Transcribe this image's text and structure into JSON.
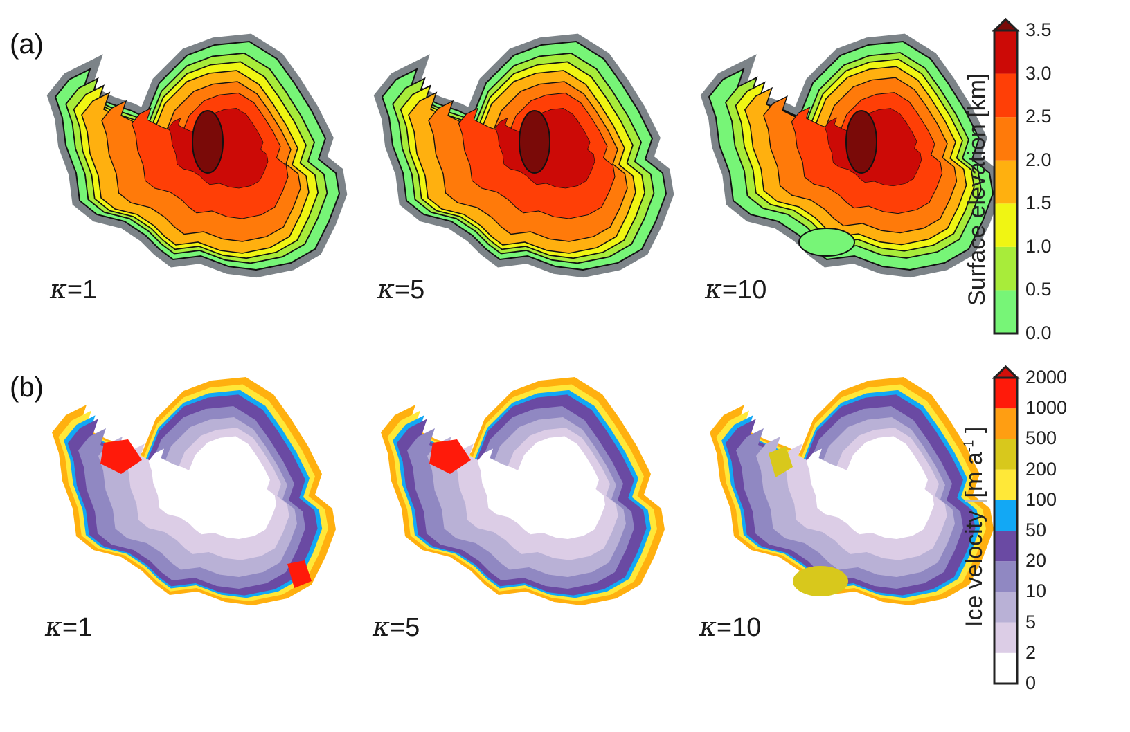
{
  "panels": [
    {
      "label": "(a)",
      "maps": [
        {
          "kappa": "1"
        },
        {
          "kappa": "5"
        },
        {
          "kappa": "10"
        }
      ]
    },
    {
      "label": "(b)",
      "maps": [
        {
          "kappa": "1"
        },
        {
          "kappa": "5"
        },
        {
          "kappa": "10"
        }
      ]
    }
  ],
  "kappa_symbol": "κ",
  "colorbars": {
    "elevation": {
      "title": "Surface elevation [km]",
      "ticks": [
        "0.0",
        "0.5",
        "1.0",
        "1.5",
        "2.0",
        "2.5",
        "3.0",
        "3.5"
      ],
      "colors": [
        "#77f577",
        "#a8ec3a",
        "#f0f513",
        "#ffb00f",
        "#ff7a0a",
        "#ff3f06",
        "#cc0a06"
      ],
      "extend_color": "#7a0a08"
    },
    "velocity": {
      "title_main": "Ice velocity",
      "title_unit": "[m a",
      "title_exp": "-1",
      "title_close": "]",
      "ticks": [
        "0",
        "2",
        "5",
        "10",
        "20",
        "50",
        "100",
        "200",
        "500",
        "1000",
        "2000"
      ],
      "colors": [
        "#ffffff",
        "#dccde6",
        "#b9b1d6",
        "#9088c2",
        "#6a4aa3",
        "#12a8f5",
        "#ffe838",
        "#d8c81c",
        "#ff9e12",
        "#ff1a0a"
      ],
      "extend_color": "#d20f0a"
    }
  },
  "map_colors": {
    "outline": "#7c8388",
    "contour": "#111111"
  }
}
